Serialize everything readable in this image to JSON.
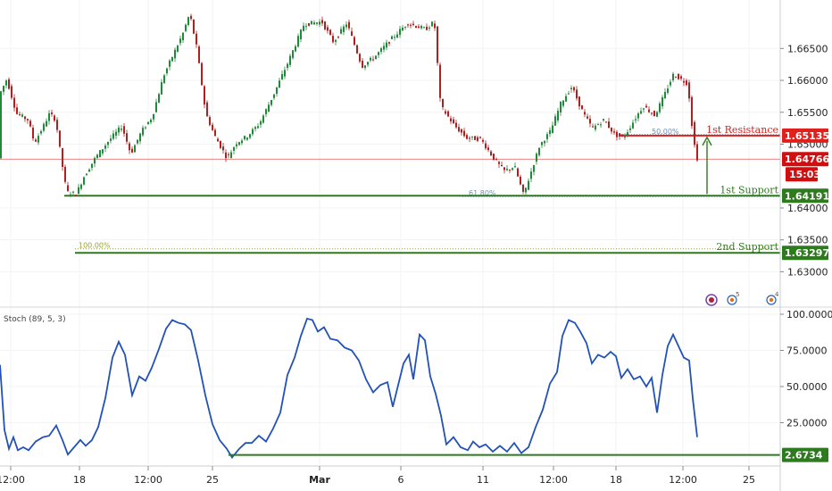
{
  "chart_data": [
    {
      "type": "candlestick",
      "title": "",
      "ylim": [
        1.6246,
        1.6726
      ],
      "y_ticks": [
        "1.66500",
        "1.66000",
        "1.65500",
        "1.65000",
        "1.64000",
        "1.63500",
        "1.63000"
      ],
      "x_ticks": [
        "12:00",
        "18",
        "12:00",
        "25",
        "Mar",
        "6",
        "11",
        "12:00",
        "18",
        "12:00",
        "25"
      ],
      "levels": [
        {
          "name": "1st Resistance",
          "price": 1.65135,
          "price_label": "1.65135",
          "color": "#e0201c"
        },
        {
          "name": "1st Support",
          "price": 1.64191,
          "price_label": "1.64191",
          "color": "#2e7a1f"
        },
        {
          "name": "2nd Support",
          "price": 1.63297,
          "price_label": "1.63297",
          "color": "#2e7a1f"
        }
      ],
      "last_price": {
        "price": 1.64766,
        "label": "1.64766",
        "countdown": "15:03",
        "color": "#d01010"
      },
      "fibonacci": [
        {
          "label": "50.00%",
          "price": 1.6515
        },
        {
          "label": "61.80%",
          "price": 1.6418
        },
        {
          "label": "100.00%",
          "price": 1.6336
        }
      ],
      "price_path": [
        [
          0,
          1.6575
        ],
        [
          9,
          1.6602
        ],
        [
          20,
          1.6548
        ],
        [
          33,
          1.6538
        ],
        [
          40,
          1.6502
        ],
        [
          50,
          1.6528
        ],
        [
          57,
          1.6548
        ],
        [
          64,
          1.6538
        ],
        [
          70,
          1.6478
        ],
        [
          76,
          1.6425
        ],
        [
          87,
          1.6422
        ],
        [
          95,
          1.6448
        ],
        [
          108,
          1.6478
        ],
        [
          123,
          1.6505
        ],
        [
          138,
          1.6528
        ],
        [
          148,
          1.6485
        ],
        [
          160,
          1.652
        ],
        [
          172,
          1.6543
        ],
        [
          185,
          1.6608
        ],
        [
          198,
          1.6648
        ],
        [
          206,
          1.6672
        ],
        [
          214,
          1.6705
        ],
        [
          222,
          1.665
        ],
        [
          232,
          1.6548
        ],
        [
          242,
          1.6513
        ],
        [
          256,
          1.6478
        ],
        [
          266,
          1.6502
        ],
        [
          278,
          1.6512
        ],
        [
          292,
          1.6532
        ],
        [
          308,
          1.6578
        ],
        [
          324,
          1.6628
        ],
        [
          342,
          1.6688
        ],
        [
          362,
          1.6692
        ],
        [
          375,
          1.666
        ],
        [
          390,
          1.669
        ],
        [
          407,
          1.6622
        ],
        [
          422,
          1.6638
        ],
        [
          440,
          1.6665
        ],
        [
          458,
          1.669
        ],
        [
          478,
          1.668
        ],
        [
          488,
          1.6692
        ],
        [
          495,
          1.656
        ],
        [
          510,
          1.653
        ],
        [
          524,
          1.651
        ],
        [
          540,
          1.6508
        ],
        [
          556,
          1.6475
        ],
        [
          566,
          1.6458
        ],
        [
          578,
          1.6465
        ],
        [
          588,
          1.642
        ],
        [
          596,
          1.6455
        ],
        [
          606,
          1.6498
        ],
        [
          618,
          1.652
        ],
        [
          630,
          1.6565
        ],
        [
          642,
          1.659
        ],
        [
          655,
          1.6548
        ],
        [
          665,
          1.6525
        ],
        [
          678,
          1.6538
        ],
        [
          690,
          1.6515
        ],
        [
          700,
          1.651
        ],
        [
          712,
          1.6538
        ],
        [
          722,
          1.656
        ],
        [
          735,
          1.6545
        ],
        [
          746,
          1.6578
        ],
        [
          756,
          1.661
        ],
        [
          766,
          1.66
        ],
        [
          772,
          1.6595
        ],
        [
          778,
          1.651
        ],
        [
          782,
          1.6478
        ]
      ],
      "annotations": {
        "arrow_up": true,
        "event_icon_counts": [
          "5",
          "4"
        ]
      }
    },
    {
      "type": "line",
      "title": "Stoch (89, 5, 3)",
      "ylim": [
        0,
        100
      ],
      "y_ticks": [
        "100.0000",
        "75.0000",
        "50.0000",
        "25.0000"
      ],
      "last_label": "2.6734",
      "low_line": 2.6734,
      "series": [
        {
          "color": "#2251b8",
          "points": [
            [
              0,
              65
            ],
            [
              5,
              20
            ],
            [
              10,
              7
            ],
            [
              15,
              15
            ],
            [
              20,
              6
            ],
            [
              26,
              8
            ],
            [
              32,
              6
            ],
            [
              40,
              12
            ],
            [
              48,
              15
            ],
            [
              55,
              16
            ],
            [
              63,
              23
            ],
            [
              70,
              13
            ],
            [
              76,
              3
            ],
            [
              83,
              8
            ],
            [
              90,
              13
            ],
            [
              96,
              9
            ],
            [
              103,
              13
            ],
            [
              110,
              22
            ],
            [
              118,
              42
            ],
            [
              126,
              70
            ],
            [
              133,
              81
            ],
            [
              140,
              72
            ],
            [
              148,
              44
            ],
            [
              156,
              57
            ],
            [
              163,
              54
            ],
            [
              170,
              63
            ],
            [
              178,
              76
            ],
            [
              186,
              90
            ],
            [
              193,
              96
            ],
            [
              200,
              94
            ],
            [
              207,
              93
            ],
            [
              214,
              89
            ],
            [
              222,
              68
            ],
            [
              230,
              44
            ],
            [
              238,
              24
            ],
            [
              246,
              13
            ],
            [
              254,
              7
            ],
            [
              260,
              1
            ],
            [
              268,
              7
            ],
            [
              275,
              11
            ],
            [
              282,
              11
            ],
            [
              290,
              16
            ],
            [
              298,
              12
            ],
            [
              306,
              21
            ],
            [
              314,
              32
            ],
            [
              322,
              58
            ],
            [
              330,
              70
            ],
            [
              337,
              85
            ],
            [
              344,
              97
            ],
            [
              350,
              96
            ],
            [
              356,
              88
            ],
            [
              363,
              91
            ],
            [
              370,
              83
            ],
            [
              378,
              82
            ],
            [
              386,
              77
            ],
            [
              394,
              75
            ],
            [
              402,
              68
            ],
            [
              410,
              55
            ],
            [
              418,
              46
            ],
            [
              426,
              51
            ],
            [
              434,
              53
            ],
            [
              440,
              36
            ],
            [
              446,
              51
            ],
            [
              452,
              66
            ],
            [
              458,
              72
            ],
            [
              463,
              55
            ],
            [
              470,
              86
            ],
            [
              476,
              82
            ],
            [
              482,
              57
            ],
            [
              488,
              45
            ],
            [
              494,
              30
            ],
            [
              500,
              10
            ],
            [
              508,
              15
            ],
            [
              516,
              8
            ],
            [
              524,
              6
            ],
            [
              530,
              12
            ],
            [
              537,
              8
            ],
            [
              544,
              10
            ],
            [
              552,
              5
            ],
            [
              560,
              9
            ],
            [
              568,
              5
            ],
            [
              576,
              11
            ],
            [
              584,
              4
            ],
            [
              592,
              8
            ],
            [
              600,
              22
            ],
            [
              608,
              34
            ],
            [
              616,
              52
            ],
            [
              624,
              60
            ],
            [
              630,
              85
            ],
            [
              637,
              96
            ],
            [
              644,
              94
            ],
            [
              650,
              88
            ],
            [
              657,
              80
            ],
            [
              663,
              66
            ],
            [
              670,
              72
            ],
            [
              677,
              70
            ],
            [
              684,
              74
            ],
            [
              690,
              71
            ],
            [
              696,
              56
            ],
            [
              703,
              62
            ],
            [
              710,
              55
            ],
            [
              717,
              57
            ],
            [
              724,
              50
            ],
            [
              730,
              56
            ],
            [
              736,
              32
            ],
            [
              742,
              58
            ],
            [
              748,
              78
            ],
            [
              754,
              86
            ],
            [
              760,
              78
            ],
            [
              766,
              70
            ],
            [
              772,
              68
            ],
            [
              776,
              42
            ],
            [
              781,
              15
            ]
          ]
        }
      ]
    }
  ]
}
